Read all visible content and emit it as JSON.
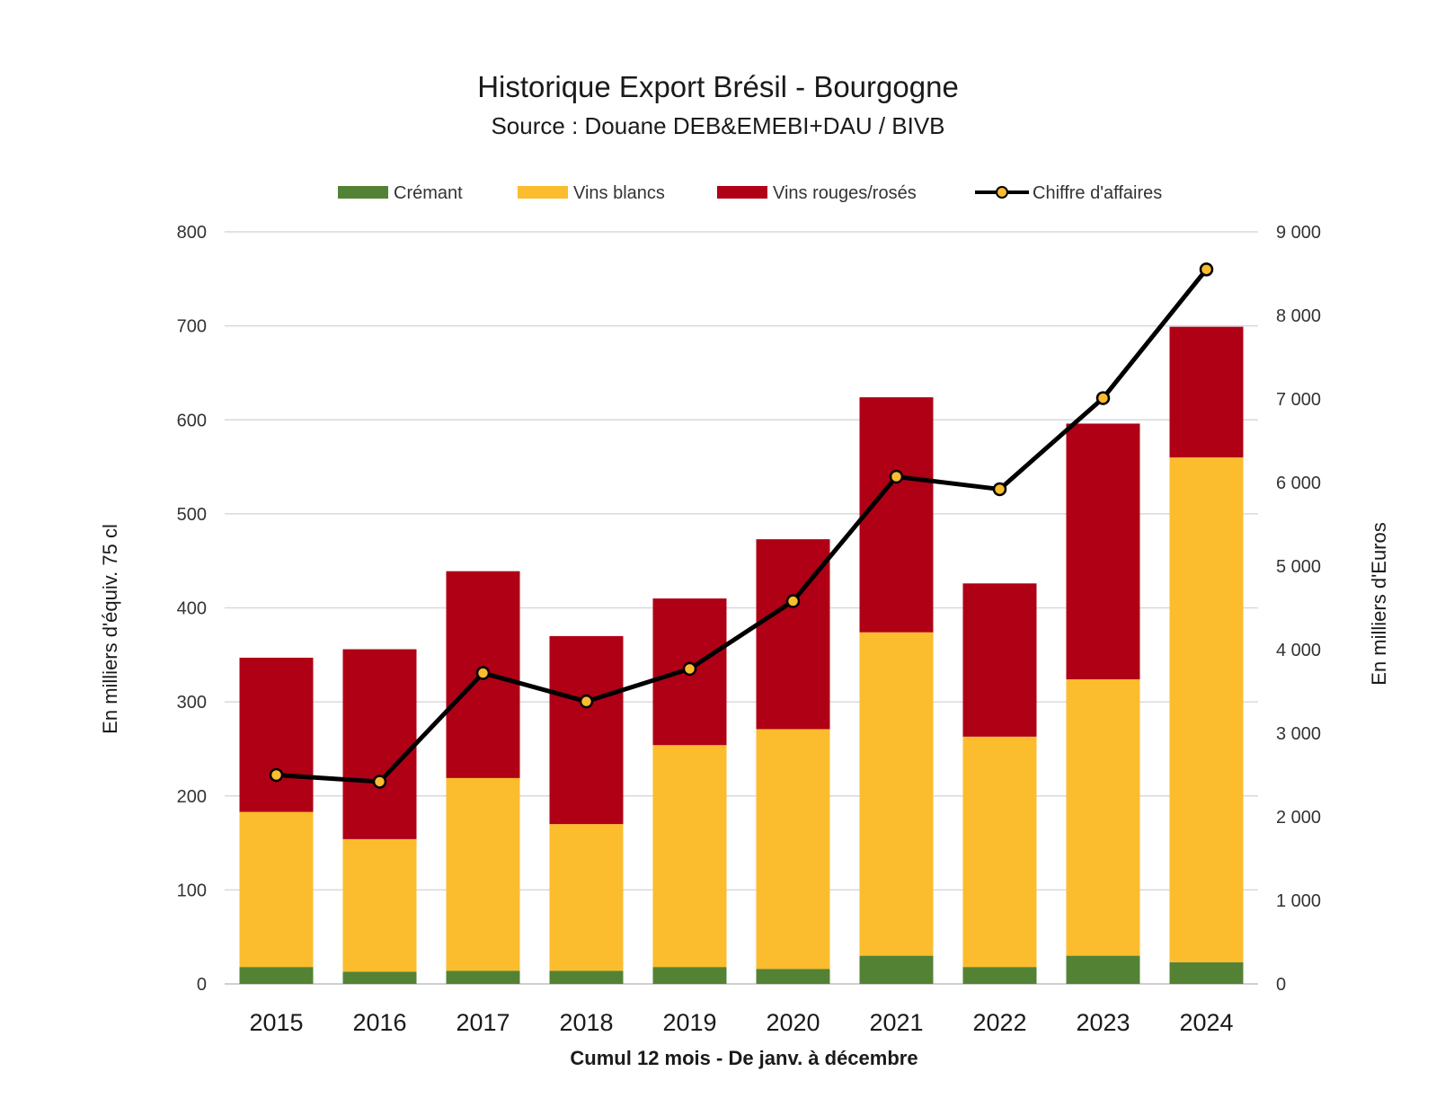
{
  "chart_data": {
    "type": "bar",
    "stacked": true,
    "title": "Historique Export Brésil - Bourgogne",
    "subtitle": "Source : Douane DEB&EMEBI+DAU / BIVB",
    "xlabel": "Cumul 12 mois - De janv. à décembre",
    "ylabel": "En milliers d'équiv. 75 cl",
    "y2label": "En milliers d'Euros",
    "categories": [
      "2015",
      "2016",
      "2017",
      "2018",
      "2019",
      "2020",
      "2021",
      "2022",
      "2023",
      "2024"
    ],
    "ylim": [
      0,
      800
    ],
    "yticks": [
      "0",
      "100",
      "200",
      "300",
      "400",
      "500",
      "600",
      "700",
      "800"
    ],
    "y2lim": [
      0,
      9000
    ],
    "y2ticks": [
      "0",
      "1 000",
      "2 000",
      "3 000",
      "4 000",
      "5 000",
      "6 000",
      "7 000",
      "8 000",
      "9 000"
    ],
    "grid": true,
    "legend_position": "top",
    "series": [
      {
        "name": "Crémant",
        "kind": "bar",
        "axis": "left",
        "color": "#548235",
        "values": [
          18,
          13,
          14,
          14,
          18,
          16,
          30,
          18,
          30,
          23
        ]
      },
      {
        "name": "Vins blancs",
        "kind": "bar",
        "axis": "left",
        "color": "#FBBC2E",
        "values": [
          165,
          141,
          205,
          156,
          236,
          255,
          344,
          245,
          294,
          537
        ]
      },
      {
        "name": "Vins rouges/rosés",
        "kind": "bar",
        "axis": "left",
        "color": "#B00016",
        "values": [
          164,
          202,
          220,
          200,
          156,
          202,
          250,
          163,
          272,
          139
        ]
      },
      {
        "name": "Chiffre d'affaires",
        "kind": "line",
        "axis": "right",
        "color": "#000000",
        "marker_color": "#FBBC2E",
        "values": [
          2500,
          2420,
          3720,
          3380,
          3770,
          4580,
          6070,
          5920,
          7010,
          8550
        ]
      }
    ]
  }
}
